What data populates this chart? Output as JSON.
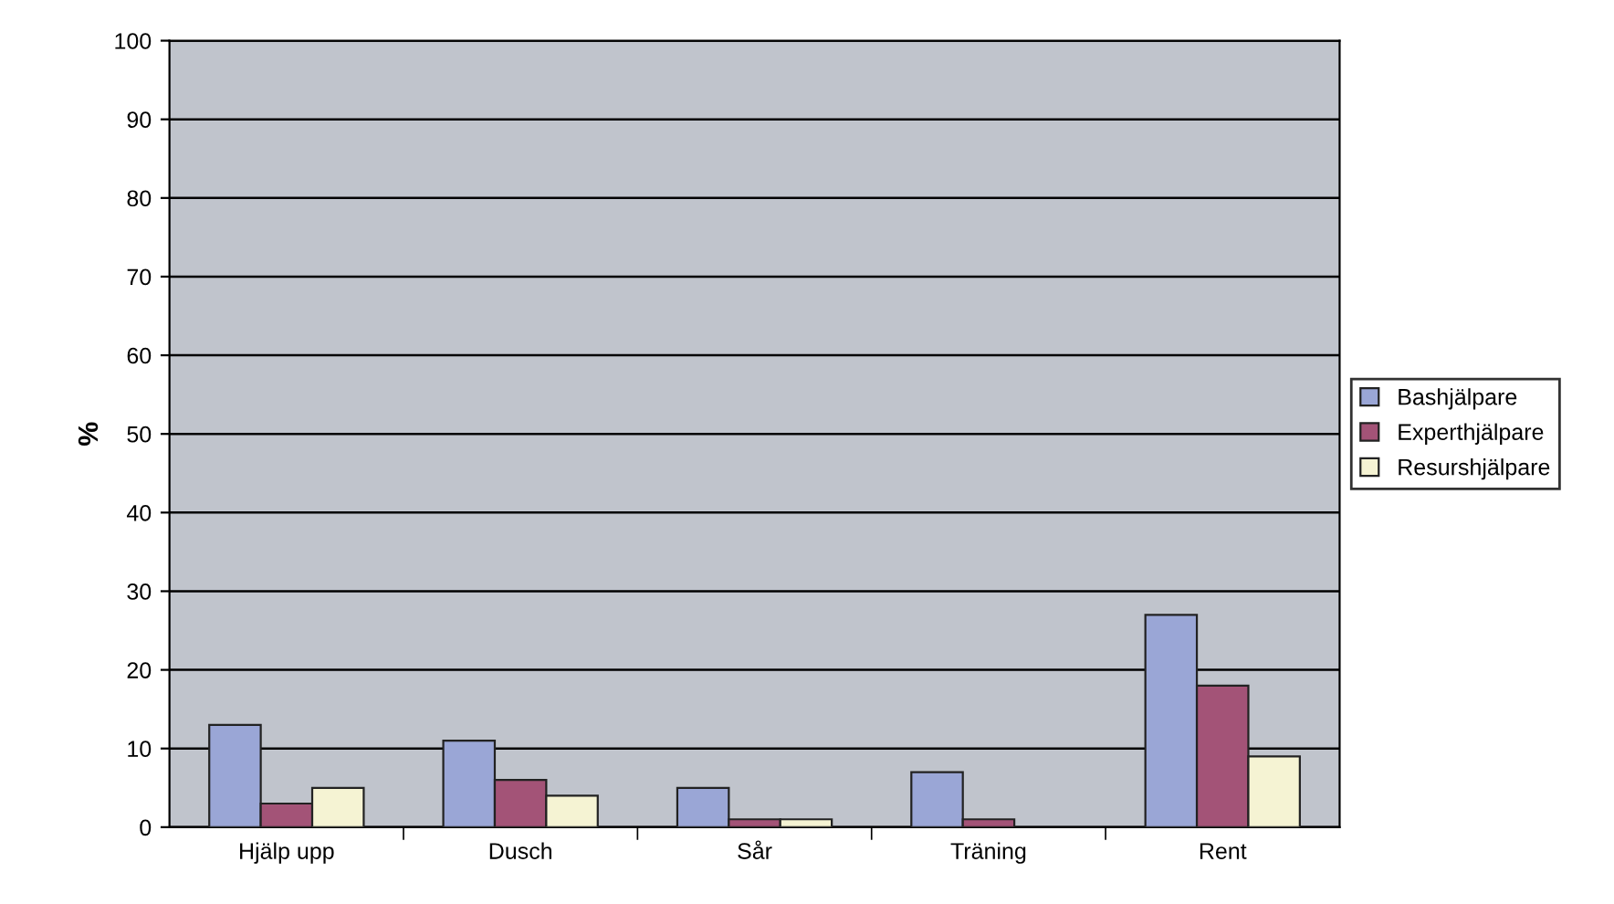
{
  "chart_data": {
    "type": "bar",
    "ylabel": "%",
    "categories": [
      "Hjälp upp",
      "Dusch",
      "Sår",
      "Träning",
      "Rent"
    ],
    "series": [
      {
        "name": "Bashjälpare",
        "color": "#9aa6d6",
        "values": [
          13,
          11,
          5,
          7,
          27
        ]
      },
      {
        "name": "Experthjälpare",
        "color": "#a35377",
        "values": [
          3,
          6,
          1,
          1,
          18
        ]
      },
      {
        "name": "Resurshjälpare",
        "color": "#f5f3d3",
        "values": [
          5,
          4,
          1,
          null,
          9
        ]
      }
    ],
    "ylim": [
      0,
      100
    ],
    "yticks": [
      0,
      10,
      20,
      30,
      40,
      50,
      60,
      70,
      80,
      90,
      100
    ],
    "grid": "y",
    "legend": "right"
  }
}
